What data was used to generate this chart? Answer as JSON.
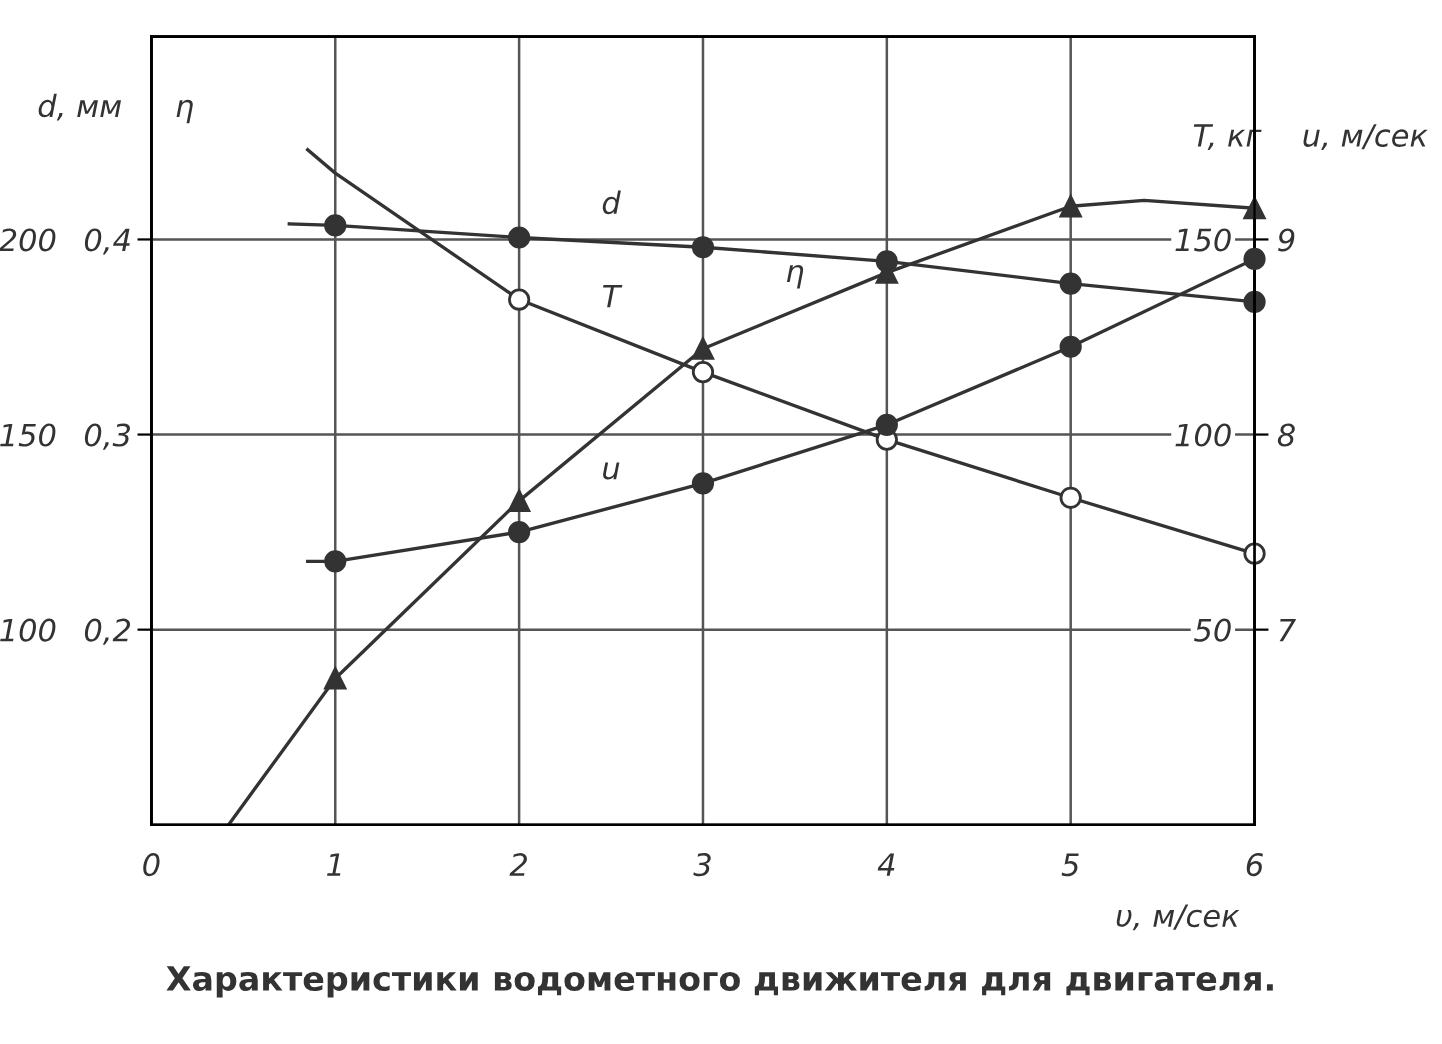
{
  "chart_data": [
    {
      "type": "line",
      "title": "Характеристики водометного движителя для двигателя.",
      "xlabel": "υ, м/сек",
      "ylabel": "d, мм",
      "y2label": "T, кг",
      "xlim": [
        0,
        6
      ],
      "xticks": [
        0,
        1,
        2,
        3,
        4,
        5,
        6
      ],
      "ylim": [
        50,
        252
      ],
      "yticks": [
        100,
        150,
        200
      ],
      "y2lim": [
        0,
        202
      ],
      "y2ticks": [
        50,
        100,
        150
      ],
      "grid": true,
      "legend": false,
      "line_style": "solid",
      "series": [
        {
          "name": "d",
          "axis": "y",
          "color": "#333333",
          "marker": "none",
          "x": [
            0.75,
            1,
            2,
            3,
            4,
            5,
            6
          ],
          "values": [
            204,
            203.6,
            200.5,
            198,
            194.4,
            188.7,
            184
          ]
        },
        {
          "type": "scatter",
          "axis": "y",
          "color": "#333333",
          "marker": "circle",
          "x": [
            1,
            2,
            3,
            4,
            5,
            6
          ],
          "values": [
            203.6,
            200.5,
            198,
            194.4,
            188.7,
            184
          ]
        },
        {
          "name": "T",
          "axis": "y2",
          "color": "#333333",
          "marker": "none",
          "x": [
            0.85,
            1,
            2,
            3,
            4,
            5,
            6
          ],
          "values": [
            173,
            167,
            134.6,
            116,
            98.7,
            83.8,
            69.5
          ]
        },
        {
          "type": "scatter",
          "axis": "y2",
          "color": "#ffffff",
          "marker": "circle",
          "x": [
            2,
            3,
            4,
            5,
            6
          ],
          "values": [
            134.6,
            116,
            98.7,
            83.8,
            69.5
          ]
        }
      ]
    },
    {
      "type": "line",
      "ylabel": "η",
      "y2label": "u, м/сек",
      "xlim": [
        0,
        6
      ],
      "xticks": [
        0,
        1,
        2,
        3,
        4,
        5,
        6
      ],
      "tick_labels": "y",
      "ylim": [
        0.1,
        0.504
      ],
      "yticks": [
        {
          "value": 0.2,
          "label": "0,2"
        },
        {
          "value": 0.3,
          "label": "0,3"
        },
        {
          "value": 0.4,
          "label": "0,4"
        }
      ],
      "y2lim": [
        6,
        10.04
      ],
      "y2ticks": [
        7,
        8,
        9
      ],
      "legend": false,
      "line_style": "solid",
      "series": [
        {
          "name": "η",
          "axis": "y",
          "color": "#333333",
          "marker": "none",
          "x": [
            0.42,
            1,
            2,
            3,
            4,
            5,
            5.4,
            6
          ],
          "values": [
            0.1,
            0.175,
            0.266,
            0.344,
            0.383,
            0.417,
            0.42,
            0.416
          ]
        },
        {
          "type": "scatter",
          "axis": "y",
          "color": "#333333",
          "marker": "triangle",
          "x": [
            1,
            2,
            3,
            4,
            5,
            6
          ],
          "values": [
            0.175,
            0.266,
            0.344,
            0.383,
            0.417,
            0.416
          ]
        },
        {
          "name": "u",
          "axis": "y2",
          "color": "#333333",
          "marker": "none",
          "x": [
            0.85,
            1,
            2,
            3,
            4,
            5,
            6
          ],
          "values": [
            7.35,
            7.35,
            7.5,
            7.75,
            8.05,
            8.45,
            8.9
          ]
        },
        {
          "type": "scatter",
          "axis": "y2",
          "color": "#333333",
          "marker": "circle",
          "x": [
            1,
            2,
            3,
            4,
            5,
            6
          ],
          "values": [
            7.35,
            7.5,
            7.75,
            8.05,
            8.45,
            8.9
          ]
        }
      ]
    }
  ]
}
